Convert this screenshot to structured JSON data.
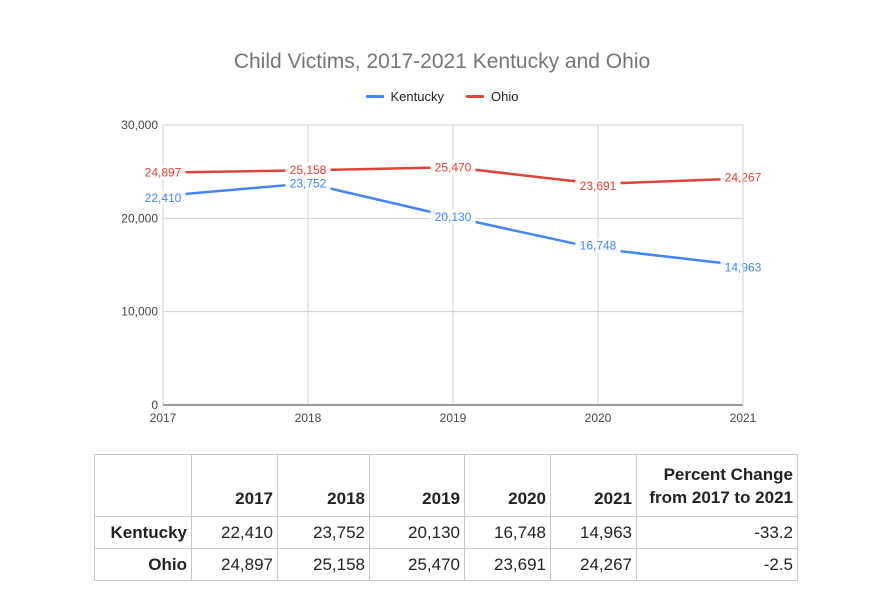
{
  "chart_data": {
    "type": "line",
    "title": "Child Victims, 2017-2021 Kentucky and Ohio",
    "x": [
      "2017",
      "2018",
      "2019",
      "2020",
      "2021"
    ],
    "ylim": [
      0,
      30000
    ],
    "yticks": [
      "0",
      "10,000",
      "20,000",
      "30,000"
    ],
    "grid": true,
    "legend_position": "top",
    "series": [
      {
        "name": "Kentucky",
        "color": "#4285f4",
        "values": [
          22410,
          23752,
          20130,
          16748,
          14963
        ],
        "labels": [
          "22,410",
          "23,752",
          "20,130",
          "16,748",
          "14,963"
        ]
      },
      {
        "name": "Ohio",
        "color": "#db4437",
        "values": [
          24897,
          25158,
          25470,
          23691,
          24267
        ],
        "labels": [
          "24,897",
          "25,158",
          "25,470",
          "23,691",
          "24,267"
        ]
      }
    ]
  },
  "table": {
    "headers": [
      "",
      "2017",
      "2018",
      "2019",
      "2020",
      "2021",
      "Percent Change\nfrom 2017 to 2021"
    ],
    "rows": [
      [
        "Kentucky",
        "22,410",
        "23,752",
        "20,130",
        "16,748",
        "14,963",
        "-33.2"
      ],
      [
        "Ohio",
        "24,897",
        "25,158",
        "25,470",
        "23,691",
        "24,267",
        "-2.5"
      ]
    ]
  }
}
